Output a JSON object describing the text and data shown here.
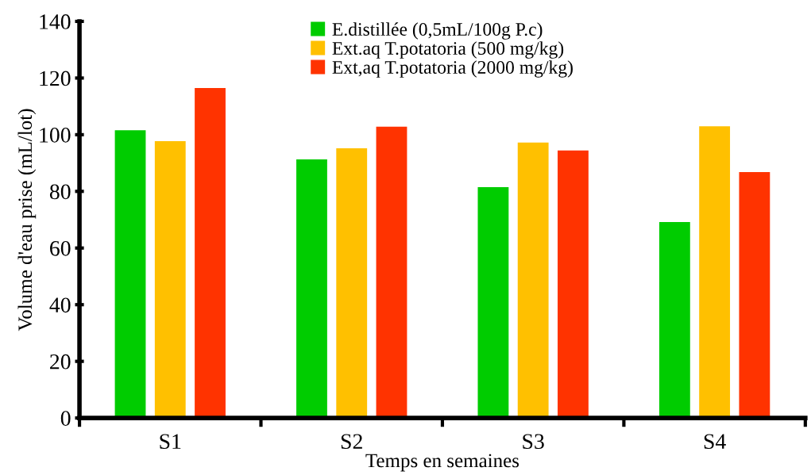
{
  "chart_data": {
    "type": "bar",
    "xlabel": "Temps en semaines",
    "ylabel": "Volume d'eau prise (mL/lot)",
    "categories": [
      "S1",
      "S2",
      "S3",
      "S4"
    ],
    "series": [
      {
        "name": "E.distillée (0,5mL/100g P.c)",
        "color": "#00cc00",
        "values": [
          101.6,
          91.3,
          81.5,
          69.2
        ]
      },
      {
        "name": "Ext.aq T.potatoria (500 mg/kg)",
        "color": "#ffc000",
        "values": [
          97.7,
          95.2,
          97.2,
          103
        ]
      },
      {
        "name": "Ext,aq T.potatoria (2000 mg/kg)",
        "color": "#ff3300",
        "values": [
          116.5,
          102.8,
          94.4,
          86.8
        ]
      }
    ],
    "ylim": [
      0,
      140
    ],
    "yticks": [
      0,
      20,
      40,
      60,
      80,
      100,
      120,
      140
    ],
    "grid": false,
    "legend": "top"
  }
}
